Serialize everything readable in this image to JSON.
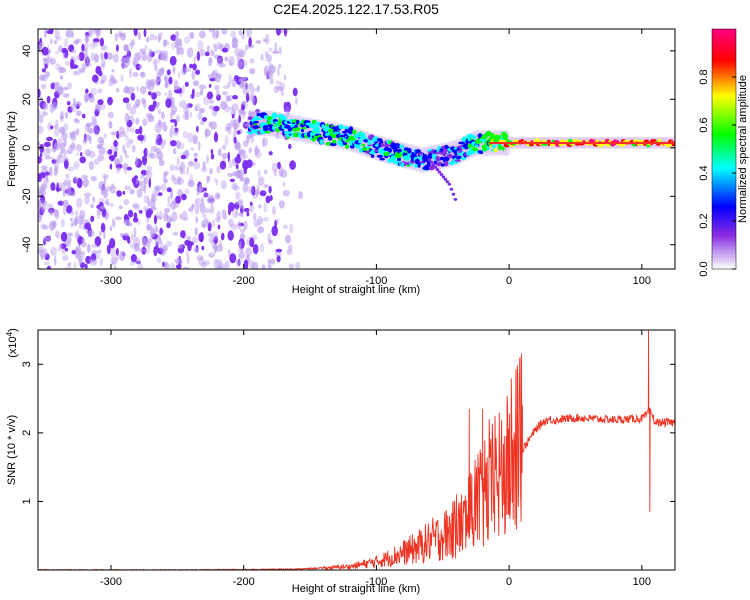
{
  "title": "C2E4.2025.122.17.53.R05",
  "chart_data": [
    {
      "type": "heatmap",
      "title": "C2E4.2025.122.17.53.R05",
      "xlabel": "Height of straight line (km)",
      "ylabel": "Frequency (Hz)",
      "xlim": [
        -355,
        125
      ],
      "ylim": [
        -50,
        49
      ],
      "xticks": [
        -300,
        -200,
        -100,
        0,
        100
      ],
      "yticks": [
        -40,
        -20,
        0,
        20,
        40
      ],
      "colorbar": {
        "label": "Normalized spectral amplitude",
        "range": [
          0,
          1
        ],
        "ticks": [
          "0.0",
          "0.2",
          "0.4",
          "0.6",
          "0.8"
        ],
        "colors": [
          "#ffffff",
          "#8a2be2",
          "#0000ff",
          "#00ffff",
          "#00ff00",
          "#ffff00",
          "#ff0000",
          "#ff007f"
        ]
      },
      "noise_region": {
        "x_from": -355,
        "x_to": -160,
        "amplitude": 0.15
      },
      "signal_track": {
        "x": [
          -195,
          -180,
          -160,
          -140,
          -120,
          -100,
          -80,
          -65,
          -55,
          -40,
          -25,
          -15,
          0,
          20,
          50,
          80,
          100,
          125
        ],
        "frequency": [
          10,
          10,
          8,
          6,
          4,
          0,
          -3,
          -5,
          -4,
          -2,
          2,
          2,
          2,
          2,
          2,
          2,
          2,
          2
        ],
        "amplitude": [
          0.35,
          0.45,
          0.5,
          0.5,
          0.45,
          0.4,
          0.4,
          0.35,
          0.3,
          0.35,
          0.5,
          0.6,
          0.75,
          0.85,
          0.9,
          0.9,
          0.85,
          0.85
        ]
      },
      "features": [
        {
          "type": "branch",
          "x": [
            -60,
            -45,
            -40
          ],
          "frequency": [
            -5,
            -15,
            -22
          ]
        }
      ]
    },
    {
      "type": "line",
      "title": "",
      "xlabel": "Height of straight line (km)",
      "ylabel": "SNR (10 * v/v)",
      "y_multiplier": "(x10^4)",
      "xlim": [
        -355,
        125
      ],
      "ylim": [
        0,
        35000
      ],
      "xticks": [
        -300,
        -200,
        -100,
        0,
        100
      ],
      "yticks": [
        10000,
        20000,
        30000
      ],
      "ytick_labels": [
        "1",
        "2",
        "3"
      ],
      "color": "#ee3322",
      "series": [
        {
          "x": [
            -355,
            -300,
            -250,
            -200,
            -180,
            -160,
            -140,
            -120,
            -100,
            -90,
            -80,
            -70,
            -60,
            -50,
            -40,
            -30,
            -25,
            -20,
            -15,
            -10,
            -5,
            0,
            5,
            10,
            15,
            20,
            25,
            30,
            35,
            40,
            50,
            60,
            70,
            80,
            90,
            100,
            103,
            105,
            107,
            110,
            115,
            125
          ],
          "y": [
            0,
            0,
            0,
            50,
            80,
            150,
            300,
            500,
            1200,
            1800,
            2500,
            3200,
            4200,
            5000,
            6000,
            7500,
            9000,
            10000,
            11000,
            12500,
            14000,
            15000,
            16000,
            17500,
            19000,
            20500,
            21500,
            22000,
            21800,
            22000,
            22200,
            22100,
            22000,
            21900,
            22000,
            22100,
            22500,
            23000,
            23000,
            21500,
            21500,
            21500
          ]
        }
      ],
      "spikes": [
        {
          "x": -30,
          "y": 23500
        },
        {
          "x": -20,
          "y": 23500
        },
        {
          "x": -15,
          "y": 22000
        },
        {
          "x": 10,
          "y": 24000
        },
        {
          "x": 105,
          "y": 35000
        },
        {
          "x": 106,
          "y": 8500
        }
      ]
    }
  ]
}
